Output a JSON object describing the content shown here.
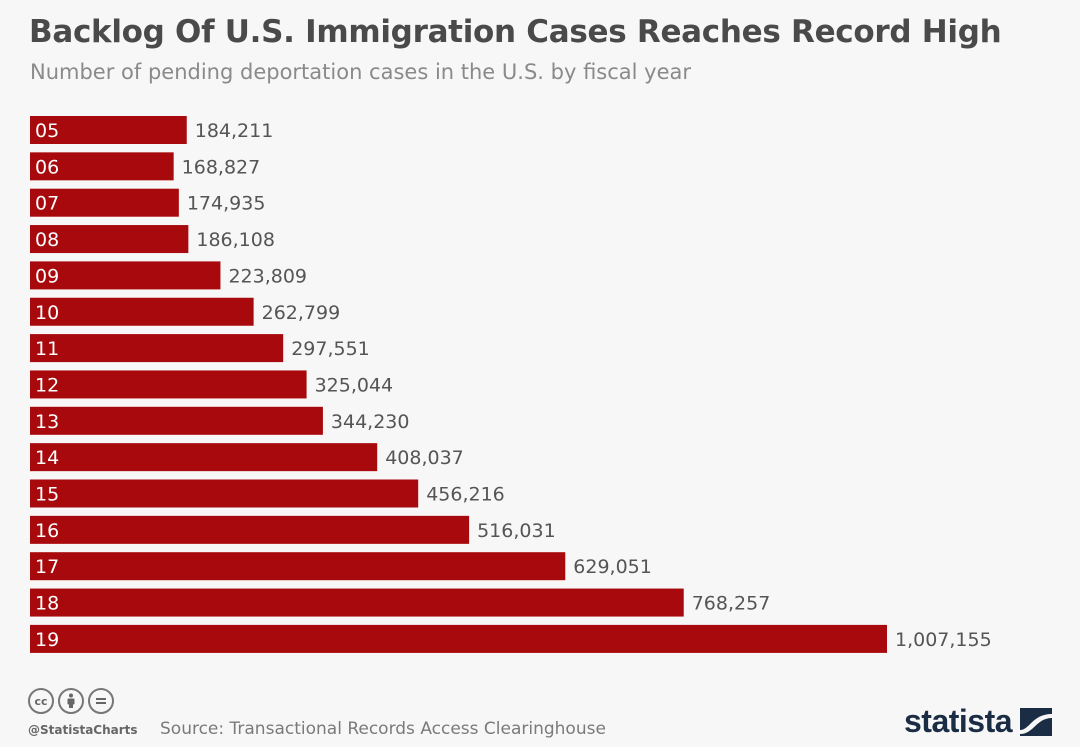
{
  "title": "Backlog Of U.S. Immigration Cases Reaches Record High",
  "subtitle": "Number of pending deportation cases in the U.S. by fiscal year",
  "footer": {
    "handle": "@StatistaCharts",
    "source": "Source: Transactional Records Access Clearinghouse",
    "brand": "statista",
    "license_icons": [
      "cc-icon",
      "attribution-icon",
      "no-derivatives-icon"
    ]
  },
  "colors": {
    "bar": "#a8090c",
    "label": "#555555",
    "bar_text": "#ffffff"
  },
  "chart_data": {
    "type": "bar",
    "orientation": "horizontal",
    "title": "Backlog Of U.S. Immigration Cases Reaches Record High",
    "subtitle": "Number of pending deportation cases in the U.S. by fiscal year",
    "xlabel": "",
    "ylabel": "",
    "grid": false,
    "categories": [
      "05",
      "06",
      "07",
      "08",
      "09",
      "10",
      "11",
      "12",
      "13",
      "14",
      "15",
      "16",
      "17",
      "18",
      "19"
    ],
    "values": [
      184211,
      168827,
      174935,
      186108,
      223809,
      262799,
      297551,
      325044,
      344230,
      408037,
      456216,
      516031,
      629051,
      768257,
      1007155
    ],
    "value_labels": [
      "184,211",
      "168,827",
      "174,935",
      "186,108",
      "223,809",
      "262,799",
      "297,551",
      "325,044",
      "344,230",
      "408,037",
      "456,216",
      "516,031",
      "629,051",
      "768,257",
      "1,007,155"
    ],
    "xlim": [
      0,
      1007155
    ]
  }
}
